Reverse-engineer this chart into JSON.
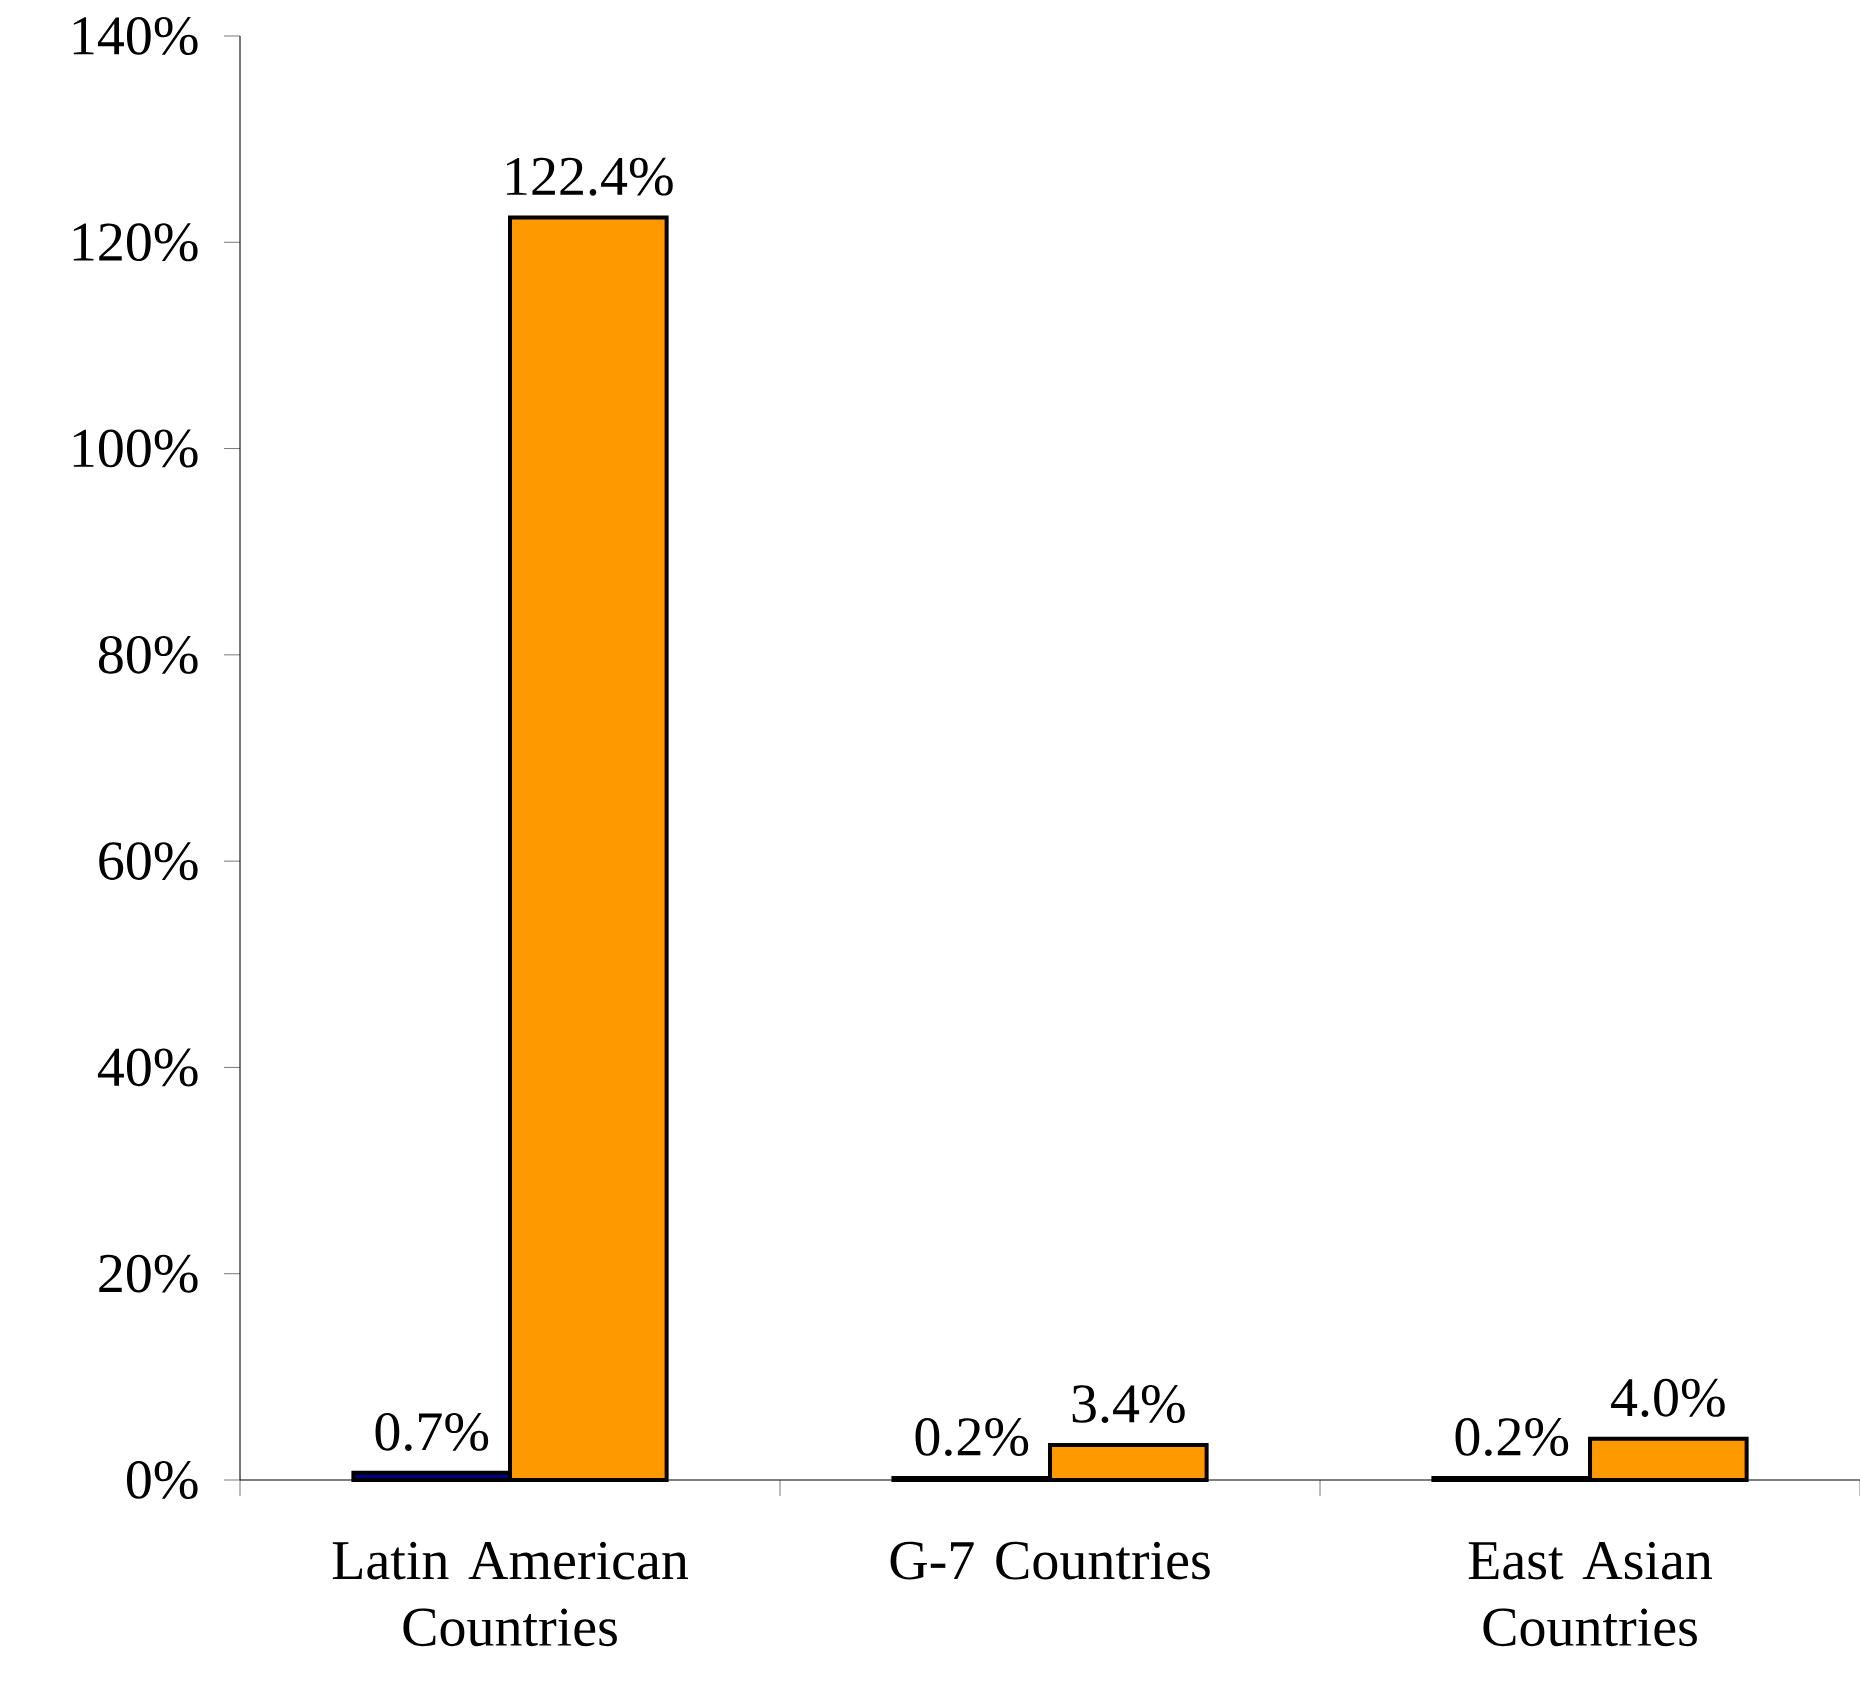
{
  "chart_data": {
    "type": "bar",
    "categories": [
      "Latin American Countries",
      "G-7 Countries",
      "East Asian Countries"
    ],
    "series": [
      {
        "color": "#000080",
        "values": [
          0.7,
          0.2,
          0.2
        ],
        "value_labels": [
          "0.7%",
          "0.2%",
          "0.2%"
        ]
      },
      {
        "color": "#ff9900",
        "values": [
          122.4,
          3.4,
          4.0
        ],
        "value_labels": [
          "122.4%",
          "3.4%",
          "4.0%"
        ]
      }
    ],
    "ylim": [
      0,
      140
    ],
    "yticks": [
      {
        "value": 0,
        "label": "0%"
      },
      {
        "value": 20,
        "label": "20%"
      },
      {
        "value": 40,
        "label": "40%"
      },
      {
        "value": 60,
        "label": "60%"
      },
      {
        "value": 80,
        "label": "80%"
      },
      {
        "value": 100,
        "label": "100%"
      },
      {
        "value": 120,
        "label": "120%"
      },
      {
        "value": 140,
        "label": "140%"
      }
    ]
  }
}
